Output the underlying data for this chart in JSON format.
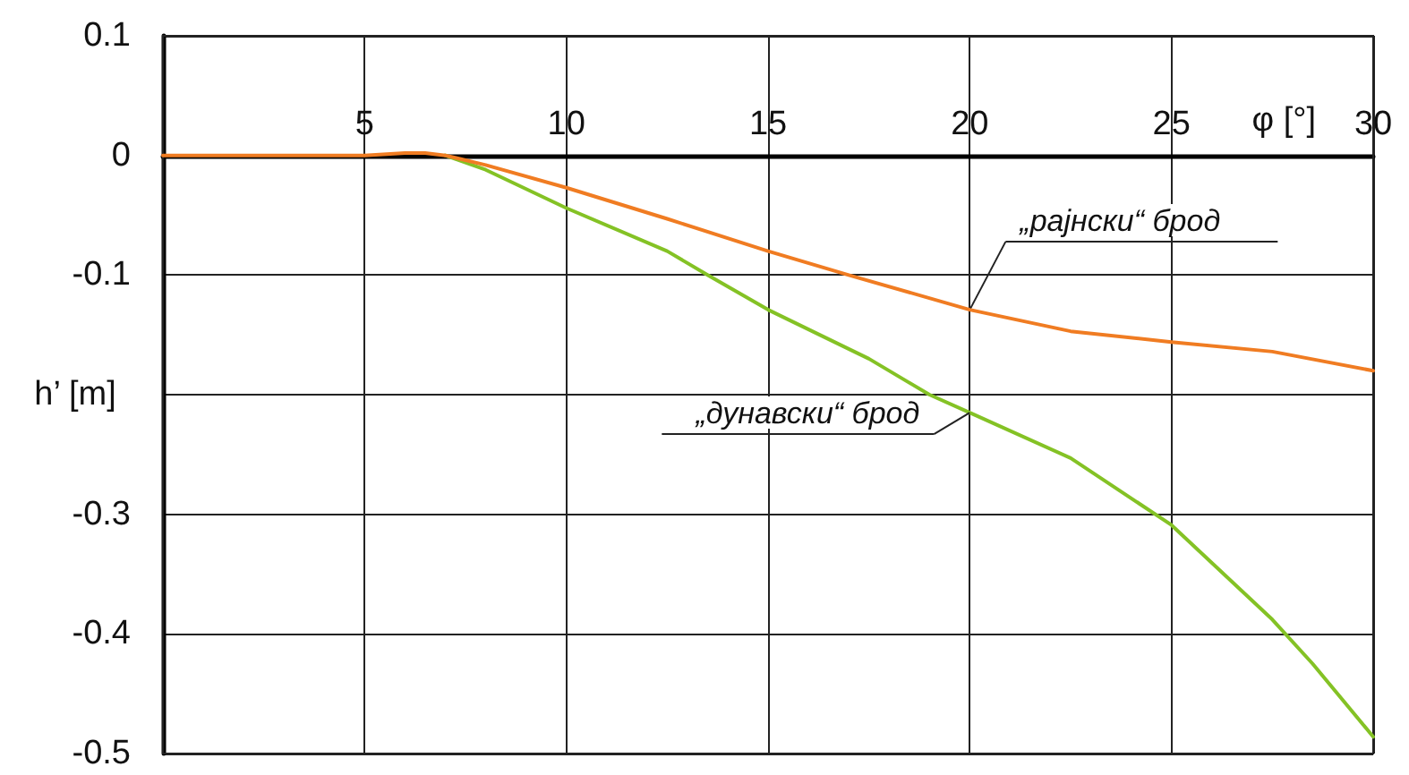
{
  "chart_data": {
    "type": "line",
    "xlabel": "φ [°]",
    "ylabel": "h’ [m]",
    "xlim": [
      0,
      30
    ],
    "xticks": [
      5,
      10,
      15,
      20,
      25,
      30
    ],
    "ylim": [
      -0.5,
      0.1
    ],
    "yticks": [
      0.1,
      0,
      -0.1,
      {
        "value": -0.2,
        "label": null
      },
      -0.3,
      -0.4,
      -0.5
    ],
    "grid": true,
    "marker": "none",
    "line_style": "solid",
    "series": [
      {
        "color": "#f07c22",
        "x": [
          0,
          5,
          6,
          6.5,
          7,
          8,
          10,
          12.5,
          15,
          17,
          20,
          22.5,
          25,
          27.5,
          30
        ],
        "values": [
          0,
          0,
          0.002,
          0.002,
          0,
          -0.008,
          -0.027,
          -0.053,
          -0.08,
          -0.1,
          -0.129,
          -0.147,
          -0.156,
          -0.164,
          -0.18
        ]
      },
      {
        "color": "#84c225",
        "x": [
          7,
          8,
          10,
          12.5,
          13.5,
          15,
          17.5,
          19,
          20,
          22.5,
          25,
          27.5,
          28.5,
          30
        ],
        "values": [
          0,
          -0.012,
          -0.044,
          -0.08,
          -0.1,
          -0.129,
          -0.17,
          -0.2,
          -0.215,
          -0.253,
          -0.309,
          -0.388,
          -0.425,
          -0.486
        ]
      }
    ],
    "annotations": [
      {
        "text": "„рајнски“ брод",
        "x": 20,
        "y": -0.129
      },
      {
        "text": "„дунавски“ брод",
        "x": 20,
        "y": -0.215
      }
    ]
  }
}
